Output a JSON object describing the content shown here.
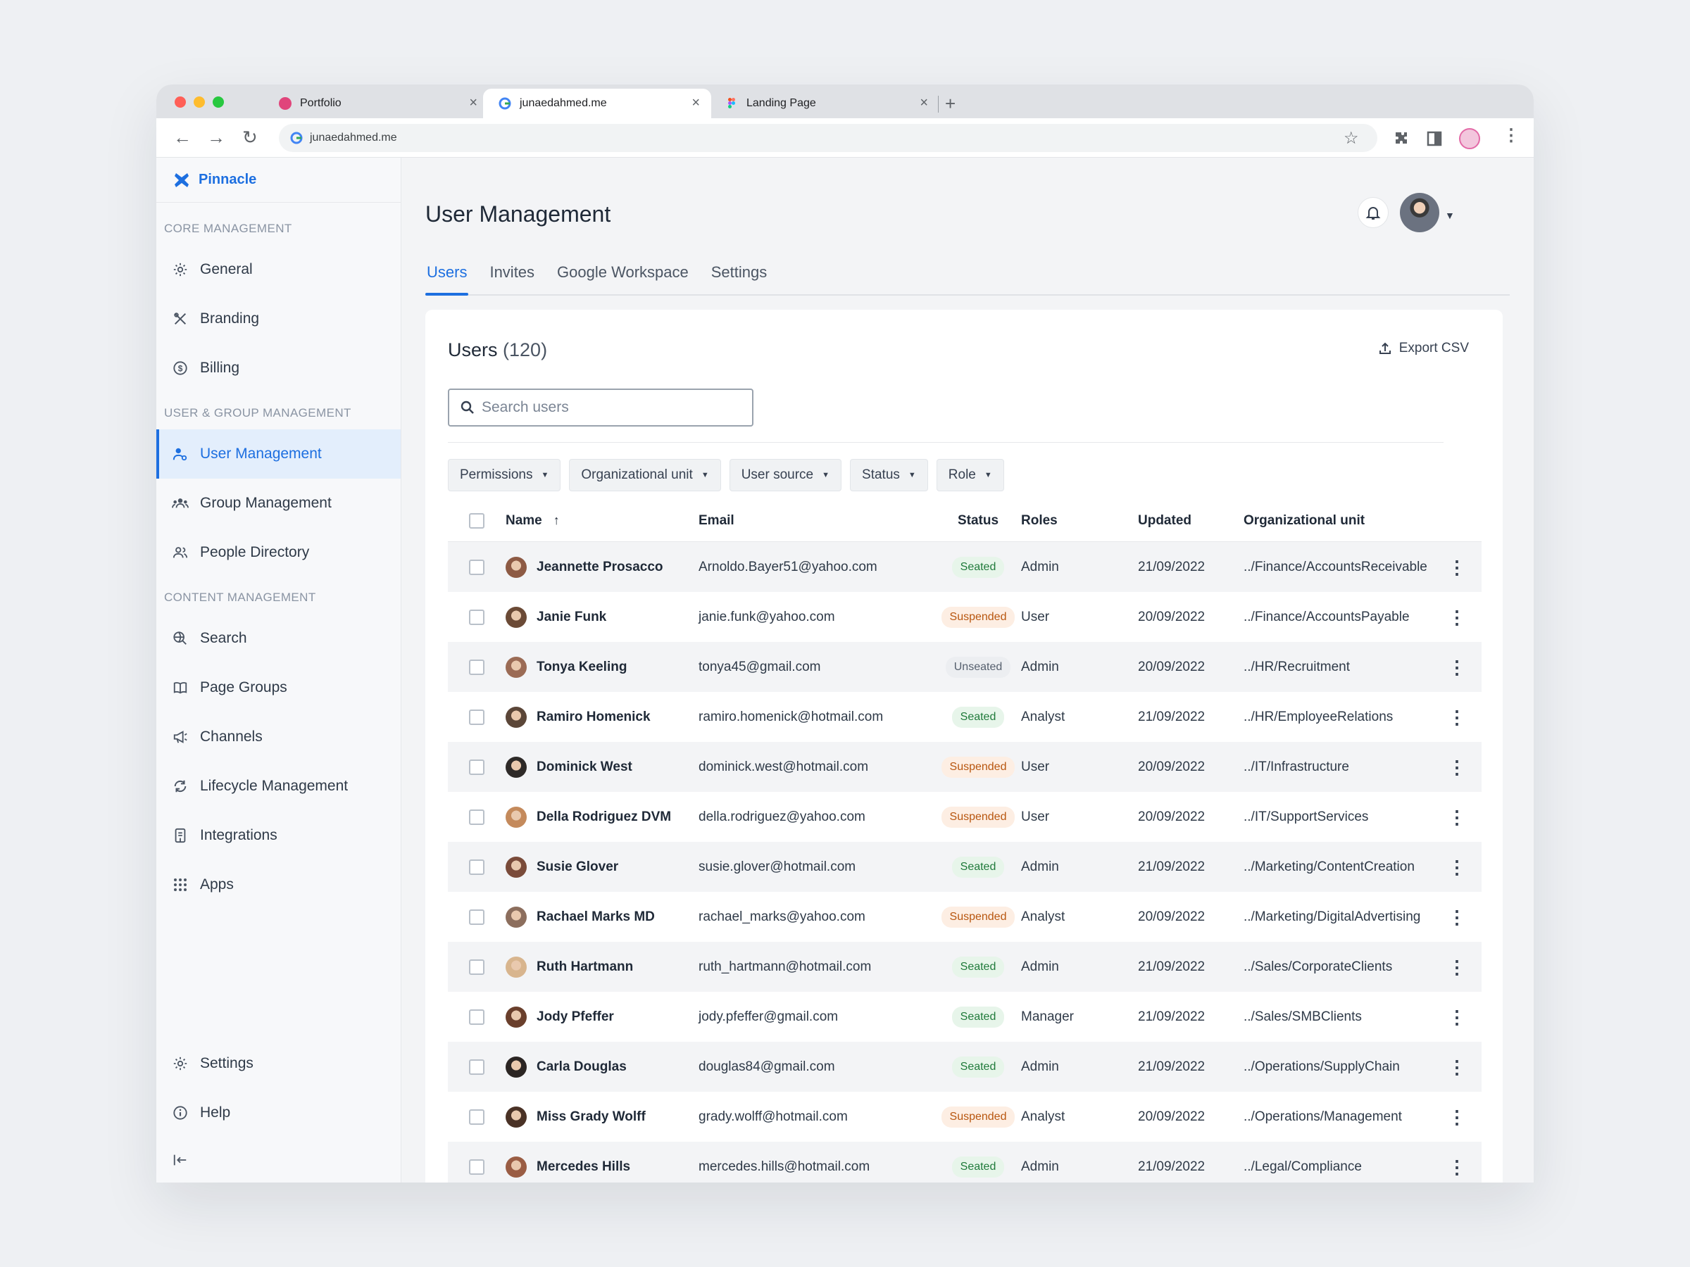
{
  "browser": {
    "tabs": [
      {
        "title": "Portfolio",
        "fav_color": "#e0457b"
      },
      {
        "title": "junaedahmed.me",
        "fav_color": "#4285f4"
      },
      {
        "title": "Landing Page",
        "fav_color": "#a259ff"
      }
    ],
    "url": "junaedahmed.me"
  },
  "sidebar": {
    "brand": "Pinnacle",
    "sections": [
      {
        "label": "CORE MANAGEMENT",
        "items": [
          {
            "label": "General",
            "icon": "gear-icon"
          },
          {
            "label": "Branding",
            "icon": "paint-tools-icon"
          },
          {
            "label": "Billing",
            "icon": "dollar-circle-icon"
          }
        ]
      },
      {
        "label": "USER & GROUP MANAGEMENT",
        "items": [
          {
            "label": "User Management",
            "icon": "user-settings-icon",
            "active": true
          },
          {
            "label": "Group Management",
            "icon": "group-icon"
          },
          {
            "label": "People Directory",
            "icon": "people-icon"
          }
        ]
      },
      {
        "label": "CONTENT MANAGEMENT",
        "items": [
          {
            "label": "Search",
            "icon": "search-globe-icon"
          },
          {
            "label": "Page Groups",
            "icon": "book-icon"
          },
          {
            "label": "Channels",
            "icon": "megaphone-icon"
          },
          {
            "label": "Lifecycle Management",
            "icon": "cycle-icon"
          },
          {
            "label": "Integrations",
            "icon": "integration-icon"
          },
          {
            "label": "Apps",
            "icon": "grid-icon"
          }
        ]
      }
    ],
    "bottom": [
      {
        "label": "Settings",
        "icon": "gear-icon"
      },
      {
        "label": "Help",
        "icon": "info-icon"
      }
    ]
  },
  "header": {
    "title": "User Management",
    "tabs": [
      "Users",
      "Invites",
      "Google Workspace",
      "Settings"
    ]
  },
  "card": {
    "title": "Users",
    "count": "(120)",
    "export_label": "Export CSV",
    "search_placeholder": "Search users",
    "filters": [
      "Permissions",
      "Organizational unit",
      "User source",
      "Status",
      "Role"
    ],
    "columns": [
      "Name",
      "Email",
      "Status",
      "Roles",
      "Updated",
      "Organizational unit"
    ]
  },
  "users": [
    {
      "name": "Jeannette Prosacco",
      "email": "Arnoldo.Bayer51@yahoo.com",
      "status": "Seated",
      "role": "Admin",
      "updated": "21/09/2022",
      "org": "../Finance/AccountsReceivable",
      "av": "#8d5a44"
    },
    {
      "name": "Janie Funk",
      "email": "janie.funk@yahoo.com",
      "status": "Suspended",
      "role": "User",
      "updated": "20/09/2022",
      "org": "../Finance/AccountsPayable",
      "av": "#6b4a36"
    },
    {
      "name": "Tonya Keeling",
      "email": "tonya45@gmail.com",
      "status": "Unseated",
      "role": "Admin",
      "updated": "20/09/2022",
      "org": "../HR/Recruitment",
      "av": "#9b6b55"
    },
    {
      "name": "Ramiro Homenick",
      "email": "ramiro.homenick@hotmail.com",
      "status": "Seated",
      "role": "Analyst",
      "updated": "21/09/2022",
      "org": "../HR/EmployeeRelations",
      "av": "#5b4638"
    },
    {
      "name": "Dominick West",
      "email": "dominick.west@hotmail.com",
      "status": "Suspended",
      "role": "User",
      "updated": "20/09/2022",
      "org": "../IT/Infrastructure",
      "av": "#2e2a28"
    },
    {
      "name": "Della Rodriguez DVM",
      "email": "della.rodriguez@yahoo.com",
      "status": "Suspended",
      "role": "User",
      "updated": "20/09/2022",
      "org": "../IT/SupportServices",
      "av": "#c48a5c"
    },
    {
      "name": "Susie Glover",
      "email": "susie.glover@hotmail.com",
      "status": "Seated",
      "role": "Admin",
      "updated": "21/09/2022",
      "org": "../Marketing/ContentCreation",
      "av": "#7a4b3a"
    },
    {
      "name": "Rachael Marks MD",
      "email": "rachael_marks@yahoo.com",
      "status": "Suspended",
      "role": "Analyst",
      "updated": "20/09/2022",
      "org": "../Marketing/DigitalAdvertising",
      "av": "#8c6e5d"
    },
    {
      "name": "Ruth Hartmann",
      "email": "ruth_hartmann@hotmail.com",
      "status": "Seated",
      "role": "Admin",
      "updated": "21/09/2022",
      "org": "../Sales/CorporateClients",
      "av": "#d8b58e"
    },
    {
      "name": "Jody Pfeffer",
      "email": "jody.pfeffer@gmail.com",
      "status": "Seated",
      "role": "Manager",
      "updated": "21/09/2022",
      "org": "../Sales/SMBClients",
      "av": "#6a3f2c"
    },
    {
      "name": "Carla Douglas",
      "email": "douglas84@gmail.com",
      "status": "Seated",
      "role": "Admin",
      "updated": "21/09/2022",
      "org": "../Operations/SupplyChain",
      "av": "#2b2523"
    },
    {
      "name": "Miss Grady Wolff",
      "email": "grady.wolff@hotmail.com",
      "status": "Suspended",
      "role": "Analyst",
      "updated": "20/09/2022",
      "org": "../Operations/Management",
      "av": "#4a3226"
    },
    {
      "name": "Mercedes Hills",
      "email": "mercedes.hills@hotmail.com",
      "status": "Seated",
      "role": "Admin",
      "updated": "21/09/2022",
      "org": "../Legal/Compliance",
      "av": "#9a5d44"
    }
  ],
  "colors": {
    "accent": "#1d6fe0",
    "seated": "#1f7a3a",
    "suspended": "#b8560f"
  }
}
